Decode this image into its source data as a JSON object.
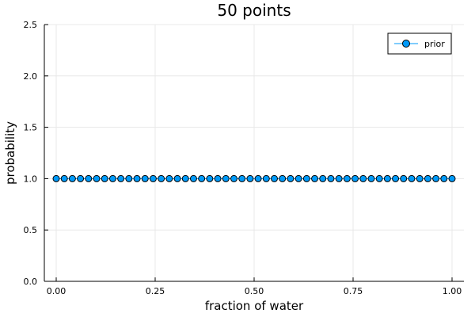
{
  "chart_data": {
    "type": "scatter",
    "title": "50 points",
    "xlabel": "fraction of water",
    "ylabel": "probability",
    "xlim": [
      -0.03,
      1.03
    ],
    "ylim": [
      0,
      2.5
    ],
    "xticks": [
      0.0,
      0.25,
      0.5,
      0.75,
      1.0
    ],
    "xtick_labels": [
      "0.00",
      "0.25",
      "0.50",
      "0.75",
      "1.00"
    ],
    "yticks": [
      0.0,
      0.5,
      1.0,
      1.5,
      2.0,
      2.5
    ],
    "ytick_labels": [
      "0.0",
      "0.5",
      "1.0",
      "1.5",
      "2.0",
      "2.5"
    ],
    "grid": true,
    "legend_position": "top-right",
    "series": [
      {
        "name": "prior",
        "color": "#009af9",
        "marker": "circle",
        "line": true,
        "x": [
          0.0,
          0.020408,
          0.040816,
          0.061224,
          0.081633,
          0.102041,
          0.122449,
          0.142857,
          0.163265,
          0.183673,
          0.204082,
          0.22449,
          0.244898,
          0.265306,
          0.285714,
          0.306122,
          0.326531,
          0.346939,
          0.367347,
          0.387755,
          0.408163,
          0.428571,
          0.44898,
          0.469388,
          0.489796,
          0.510204,
          0.530612,
          0.55102,
          0.571429,
          0.591837,
          0.612245,
          0.632653,
          0.653061,
          0.673469,
          0.693878,
          0.714286,
          0.734694,
          0.755102,
          0.77551,
          0.795918,
          0.816327,
          0.836735,
          0.857143,
          0.877551,
          0.897959,
          0.918367,
          0.938776,
          0.959184,
          0.979592,
          1.0
        ],
        "y": [
          1,
          1,
          1,
          1,
          1,
          1,
          1,
          1,
          1,
          1,
          1,
          1,
          1,
          1,
          1,
          1,
          1,
          1,
          1,
          1,
          1,
          1,
          1,
          1,
          1,
          1,
          1,
          1,
          1,
          1,
          1,
          1,
          1,
          1,
          1,
          1,
          1,
          1,
          1,
          1,
          1,
          1,
          1,
          1,
          1,
          1,
          1,
          1,
          1,
          1
        ]
      }
    ]
  }
}
